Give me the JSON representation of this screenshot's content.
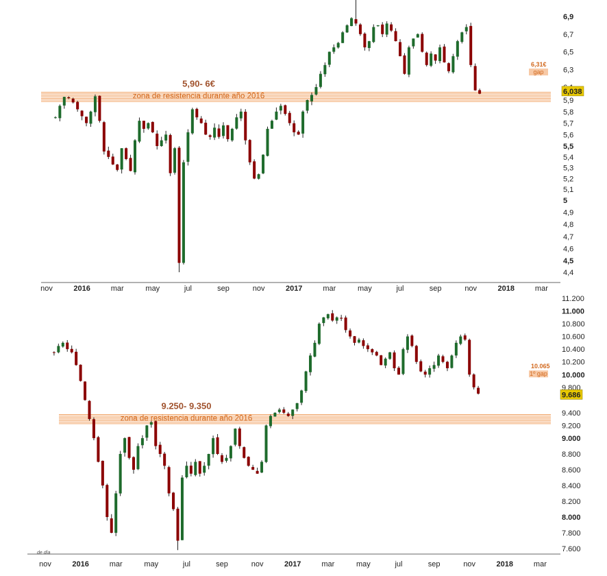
{
  "colors": {
    "up_candle": "#1e6b2c",
    "down_candle": "#8b0000",
    "wick": "#222222",
    "zone": "#f0a060",
    "annotation_text": "#d2691e",
    "annotation_title": "#a0522d",
    "gap_box": "#f7c9a6",
    "last_price_box": "#e8c800"
  },
  "footnote": "de día",
  "chart_data": [
    {
      "type": "candlestick",
      "x_ticks": [
        {
          "label": "nov",
          "bold": false
        },
        {
          "label": "2016",
          "bold": true
        },
        {
          "label": "mar",
          "bold": false
        },
        {
          "label": "may",
          "bold": false
        },
        {
          "label": "jul",
          "bold": false
        },
        {
          "label": "sep",
          "bold": false
        },
        {
          "label": "nov",
          "bold": false
        },
        {
          "label": "2017",
          "bold": true
        },
        {
          "label": "mar",
          "bold": false
        },
        {
          "label": "may",
          "bold": false
        },
        {
          "label": "jul",
          "bold": false
        },
        {
          "label": "sep",
          "bold": false
        },
        {
          "label": "nov",
          "bold": false
        },
        {
          "label": "2018",
          "bold": true
        },
        {
          "label": "mar",
          "bold": false
        }
      ],
      "y_ticks": [
        {
          "value": 6.9,
          "label": "6,9",
          "bold": true
        },
        {
          "value": 6.7,
          "label": "6,7",
          "bold": false
        },
        {
          "value": 6.5,
          "label": "6,5",
          "bold": false
        },
        {
          "value": 6.3,
          "label": "6,3",
          "bold": false
        },
        {
          "value": 6.1,
          "label": "6,1",
          "bold": false
        },
        {
          "value": 5.9,
          "label": "5,9",
          "bold": false
        },
        {
          "value": 5.8,
          "label": "5,8",
          "bold": false
        },
        {
          "value": 5.7,
          "label": "5,7",
          "bold": false
        },
        {
          "value": 5.6,
          "label": "5,6",
          "bold": false
        },
        {
          "value": 5.5,
          "label": "5,5",
          "bold": true
        },
        {
          "value": 5.4,
          "label": "5,4",
          "bold": false
        },
        {
          "value": 5.3,
          "label": "5,3",
          "bold": false
        },
        {
          "value": 5.2,
          "label": "5,2",
          "bold": false
        },
        {
          "value": 5.1,
          "label": "5,1",
          "bold": false
        },
        {
          "value": 5.0,
          "label": "5",
          "bold": true
        },
        {
          "value": 4.9,
          "label": "4,9",
          "bold": false
        },
        {
          "value": 4.8,
          "label": "4,8",
          "bold": false
        },
        {
          "value": 4.7,
          "label": "4,7",
          "bold": false
        },
        {
          "value": 4.6,
          "label": "4,6",
          "bold": false
        },
        {
          "value": 4.5,
          "label": "4,5",
          "bold": true
        },
        {
          "value": 4.4,
          "label": "4,4",
          "bold": false
        }
      ],
      "last_price": {
        "value": 6.038,
        "label": "6,038"
      },
      "gap": {
        "value": 6.31,
        "label": "6,31€",
        "text": "gap"
      },
      "zone": {
        "low": 5.9,
        "high": 6.0,
        "title": "5,90- 6€",
        "subtitle": "zona de resistencia durante año 2016"
      },
      "series": {
        "points_per_month": 4,
        "closes": [
          5.75,
          5.85,
          5.95,
          5.93,
          5.88,
          5.82,
          5.76,
          5.7,
          5.8,
          5.96,
          5.72,
          5.45,
          5.4,
          5.33,
          5.28,
          5.48,
          5.38,
          5.27,
          5.55,
          5.72,
          5.65,
          5.7,
          5.62,
          5.5,
          5.55,
          5.6,
          5.25,
          5.48,
          4.48,
          5.35,
          5.62,
          5.82,
          5.75,
          5.7,
          5.6,
          5.58,
          5.66,
          5.58,
          5.68,
          5.56,
          5.65,
          5.75,
          5.8,
          5.55,
          5.35,
          5.2,
          5.24,
          5.42,
          5.65,
          5.72,
          5.8,
          5.85,
          5.78,
          5.7,
          5.62,
          5.6,
          5.8,
          5.9,
          5.98,
          6.1,
          6.25,
          6.35,
          6.5,
          6.55,
          6.6,
          6.72,
          6.8,
          6.88,
          6.82,
          6.7,
          6.55,
          6.62,
          6.78,
          6.8,
          6.7,
          6.82,
          6.74,
          6.62,
          6.45,
          6.25,
          6.55,
          6.65,
          6.7,
          6.5,
          6.35,
          6.48,
          6.4,
          6.55,
          6.38,
          6.28,
          6.45,
          6.62,
          6.72,
          6.78,
          6.35,
          6.05,
          6.0
        ],
        "overrides": {
          "28": {
            "low": 4.4
          }
        }
      }
    },
    {
      "type": "candlestick",
      "x_ticks": [
        {
          "label": "nov",
          "bold": false
        },
        {
          "label": "2016",
          "bold": true
        },
        {
          "label": "mar",
          "bold": false
        },
        {
          "label": "may",
          "bold": false
        },
        {
          "label": "jul",
          "bold": false
        },
        {
          "label": "sep",
          "bold": false
        },
        {
          "label": "nov",
          "bold": false
        },
        {
          "label": "2017",
          "bold": true
        },
        {
          "label": "mar",
          "bold": false
        },
        {
          "label": "may",
          "bold": false
        },
        {
          "label": "jul",
          "bold": false
        },
        {
          "label": "sep",
          "bold": false
        },
        {
          "label": "nov",
          "bold": false
        },
        {
          "label": "2018",
          "bold": true
        },
        {
          "label": "mar",
          "bold": false
        }
      ],
      "y_ticks": [
        {
          "value": 11200,
          "label": "11.200",
          "bold": false
        },
        {
          "value": 11000,
          "label": "11.000",
          "bold": true
        },
        {
          "value": 10800,
          "label": "10.800",
          "bold": false
        },
        {
          "value": 10600,
          "label": "10.600",
          "bold": false
        },
        {
          "value": 10400,
          "label": "10.400",
          "bold": false
        },
        {
          "value": 10200,
          "label": "10.200",
          "bold": false
        },
        {
          "value": 10000,
          "label": "10.000",
          "bold": true
        },
        {
          "value": 9800,
          "label": "9.800",
          "bold": false
        },
        {
          "value": 9400,
          "label": "9.400",
          "bold": false
        },
        {
          "value": 9200,
          "label": "9.200",
          "bold": false
        },
        {
          "value": 9000,
          "label": "9.000",
          "bold": true
        },
        {
          "value": 8800,
          "label": "8.800",
          "bold": false
        },
        {
          "value": 8600,
          "label": "8.600",
          "bold": false
        },
        {
          "value": 8400,
          "label": "8.400",
          "bold": false
        },
        {
          "value": 8200,
          "label": "8.200",
          "bold": false
        },
        {
          "value": 8000,
          "label": "8.000",
          "bold": true
        },
        {
          "value": 7800,
          "label": "7.800",
          "bold": false
        },
        {
          "value": 7600,
          "label": "7.600",
          "bold": false
        }
      ],
      "last_price": {
        "value": 9686,
        "label": "9.686"
      },
      "gap": {
        "value": 10065,
        "label": "10.065",
        "text": "1º gap"
      },
      "zone": {
        "low": 9250,
        "high": 9350,
        "title": "9.250- 9.350",
        "subtitle": "zona de resistencia durante año 2016"
      },
      "series": {
        "points_per_month": 4,
        "closes": [
          10350,
          10450,
          10500,
          10400,
          10350,
          10150,
          9900,
          9600,
          9300,
          9000,
          8700,
          8400,
          8000,
          7800,
          8300,
          8800,
          9000,
          8750,
          8600,
          8900,
          9000,
          9200,
          9250,
          8900,
          8800,
          8650,
          8300,
          8100,
          7700,
          8500,
          8650,
          8550,
          8700,
          8550,
          8650,
          8800,
          9000,
          8800,
          8700,
          8750,
          8900,
          9150,
          8900,
          8750,
          8650,
          8600,
          8550,
          8700,
          9200,
          9350,
          9400,
          9450,
          9400,
          9350,
          9450,
          9550,
          9750,
          10050,
          10300,
          10500,
          10800,
          10900,
          10950,
          10850,
          10900,
          10880,
          10700,
          10600,
          10500,
          10550,
          10450,
          10400,
          10350,
          10300,
          10150,
          10250,
          10350,
          10100,
          10000,
          10400,
          10600,
          10450,
          10200,
          10050,
          10000,
          10100,
          10150,
          10300,
          10200,
          10100,
          10300,
          10500,
          10600,
          10550,
          10000,
          9800,
          9700
        ],
        "overrides": {
          "28": {
            "low": 7580
          }
        }
      }
    }
  ]
}
